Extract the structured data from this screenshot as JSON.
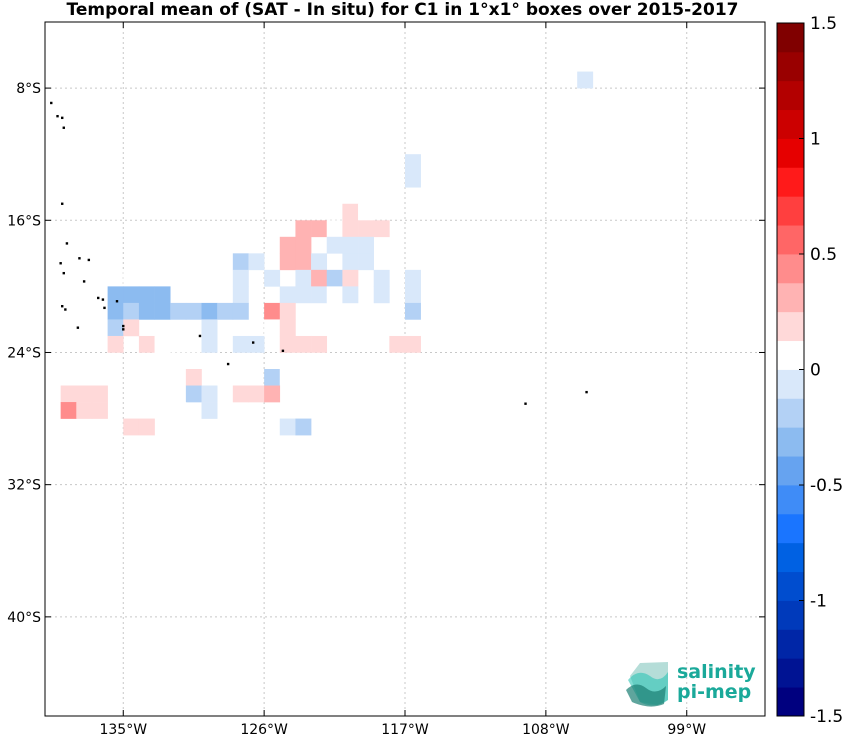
{
  "chart_data": {
    "type": "heatmap",
    "title": "Temporal mean of (SAT - In situ) for C1 in 1°x1° boxes over 2015-2017",
    "xlim": [
      -140,
      -94
    ],
    "ylim": [
      -46,
      -4
    ],
    "x_ticks": [
      {
        "value": -135,
        "label": "135°W"
      },
      {
        "value": -126,
        "label": "126°W"
      },
      {
        "value": -117,
        "label": "117°W"
      },
      {
        "value": -108,
        "label": "108°W"
      },
      {
        "value": -99,
        "label": "99°W"
      }
    ],
    "y_ticks": [
      {
        "value": -8,
        "label": "8°S"
      },
      {
        "value": -16,
        "label": "16°S"
      },
      {
        "value": -24,
        "label": "24°S"
      },
      {
        "value": -32,
        "label": "32°S"
      },
      {
        "value": -40,
        "label": "40°S"
      }
    ],
    "grid": true,
    "colorbar": {
      "min": -1.5,
      "max": 1.5,
      "levels": 20,
      "placement": "right",
      "ticks": [
        {
          "value": 1.5,
          "label": "1.5"
        },
        {
          "value": 1,
          "label": "1"
        },
        {
          "value": 0.5,
          "label": "0.5"
        },
        {
          "value": 0,
          "label": "0"
        },
        {
          "value": -0.5,
          "label": "-0.5"
        },
        {
          "value": -1,
          "label": "-1"
        },
        {
          "value": -1.5,
          "label": "-1.5"
        }
      ],
      "colors": [
        "#00007f",
        "#001393",
        "#0026a7",
        "#003abb",
        "#004dcf",
        "#0061e3",
        "#1a75ff",
        "#3f8cf7",
        "#66a3f0",
        "#8cbbf0",
        "#b3d1f5",
        "#d9e8fa",
        "#ffffff",
        "#ffd9d9",
        "#ffb3b3",
        "#ff8c8c",
        "#ff6666",
        "#ff3f3f",
        "#ff1a1a",
        "#e60000",
        "#cc0000",
        "#b30000",
        "#990000",
        "#800000"
      ]
    },
    "cells": [
      {
        "lon": -106,
        "lat": -7,
        "v": -0.1
      },
      {
        "lon": -117,
        "lat": -12,
        "v": -0.1
      },
      {
        "lon": -117,
        "lat": -13,
        "v": -0.1
      },
      {
        "lon": -121,
        "lat": -15,
        "v": 0.2
      },
      {
        "lon": -120,
        "lat": -15,
        "v": 0.1
      },
      {
        "lon": -124,
        "lat": -16,
        "v": 0.25
      },
      {
        "lon": -123,
        "lat": -16,
        "v": 0.25
      },
      {
        "lon": -122,
        "lat": -16,
        "v": 0.1
      },
      {
        "lon": -121,
        "lat": -16,
        "v": 0.2
      },
      {
        "lon": -120,
        "lat": -16,
        "v": 0.2
      },
      {
        "lon": -119,
        "lat": -16,
        "v": 0.2
      },
      {
        "lon": -125,
        "lat": -17,
        "v": 0.25
      },
      {
        "lon": -124,
        "lat": -17,
        "v": 0.3
      },
      {
        "lon": -122,
        "lat": -17,
        "v": -0.1
      },
      {
        "lon": -121,
        "lat": -17,
        "v": -0.1
      },
      {
        "lon": -120,
        "lat": -17,
        "v": -0.1
      },
      {
        "lon": -128,
        "lat": -18,
        "v": -0.15
      },
      {
        "lon": -127,
        "lat": -18,
        "v": -0.1
      },
      {
        "lon": -125,
        "lat": -18,
        "v": 0.25
      },
      {
        "lon": -124,
        "lat": -18,
        "v": 0.3
      },
      {
        "lon": -123,
        "lat": -18,
        "v": -0.1
      },
      {
        "lon": -121,
        "lat": -18,
        "v": -0.1
      },
      {
        "lon": -120,
        "lat": -18,
        "v": -0.1
      },
      {
        "lon": -135,
        "lat": -19,
        "v": 0.1
      },
      {
        "lon": -130,
        "lat": -19,
        "v": 0.1
      },
      {
        "lon": -128,
        "lat": -19,
        "v": -0.1
      },
      {
        "lon": -126,
        "lat": -19,
        "v": -0.1
      },
      {
        "lon": -124,
        "lat": -19,
        "v": -0.1
      },
      {
        "lon": -123,
        "lat": -19,
        "v": 0.3
      },
      {
        "lon": -122,
        "lat": -19,
        "v": -0.15
      },
      {
        "lon": -121,
        "lat": -19,
        "v": 0.15
      },
      {
        "lon": -119,
        "lat": -19,
        "v": -0.1
      },
      {
        "lon": -117,
        "lat": -19,
        "v": -0.1
      },
      {
        "lon": -136,
        "lat": -20,
        "v": -0.3
      },
      {
        "lon": -135,
        "lat": -20,
        "v": -0.3
      },
      {
        "lon": -134,
        "lat": -20,
        "v": -0.3
      },
      {
        "lon": -133,
        "lat": -20,
        "v": -0.3
      },
      {
        "lon": -128,
        "lat": -20,
        "v": -0.1
      },
      {
        "lon": -125,
        "lat": -20,
        "v": -0.1
      },
      {
        "lon": -124,
        "lat": -20,
        "v": -0.1
      },
      {
        "lon": -123,
        "lat": -20,
        "v": -0.1
      },
      {
        "lon": -122,
        "lat": -20,
        "v": 0.1
      },
      {
        "lon": -121,
        "lat": -20,
        "v": -0.1
      },
      {
        "lon": -119,
        "lat": -20,
        "v": -0.1
      },
      {
        "lon": -117,
        "lat": -20,
        "v": -0.1
      },
      {
        "lon": -136,
        "lat": -21,
        "v": -0.3
      },
      {
        "lon": -135,
        "lat": -21,
        "v": -0.2
      },
      {
        "lon": -134,
        "lat": -21,
        "v": -0.3
      },
      {
        "lon": -133,
        "lat": -21,
        "v": -0.3
      },
      {
        "lon": -132,
        "lat": -21,
        "v": -0.15
      },
      {
        "lon": -131,
        "lat": -21,
        "v": -0.2
      },
      {
        "lon": -130,
        "lat": -21,
        "v": -0.3
      },
      {
        "lon": -129,
        "lat": -21,
        "v": -0.15
      },
      {
        "lon": -128,
        "lat": -21,
        "v": -0.15
      },
      {
        "lon": -126,
        "lat": -21,
        "v": 0.4
      },
      {
        "lon": -125,
        "lat": -21,
        "v": 0.15
      },
      {
        "lon": -117,
        "lat": -21,
        "v": -0.2
      },
      {
        "lon": -136,
        "lat": -22,
        "v": -0.15
      },
      {
        "lon": -135,
        "lat": -22,
        "v": 0.15
      },
      {
        "lon": -130,
        "lat": -22,
        "v": -0.1
      },
      {
        "lon": -126,
        "lat": -22,
        "v": 0.1
      },
      {
        "lon": -125,
        "lat": -22,
        "v": 0.2
      },
      {
        "lon": -136,
        "lat": -23,
        "v": 0.2
      },
      {
        "lon": -134,
        "lat": -23,
        "v": 0.2
      },
      {
        "lon": -133,
        "lat": -23,
        "v": 0.1
      },
      {
        "lon": -130,
        "lat": -23,
        "v": -0.1
      },
      {
        "lon": -128,
        "lat": -23,
        "v": -0.1
      },
      {
        "lon": -127,
        "lat": -23,
        "v": -0.1
      },
      {
        "lon": -125,
        "lat": -23,
        "v": 0.15
      },
      {
        "lon": -124,
        "lat": -23,
        "v": 0.15
      },
      {
        "lon": -123,
        "lat": -23,
        "v": 0.15
      },
      {
        "lon": -118,
        "lat": -23,
        "v": 0.15
      },
      {
        "lon": -117,
        "lat": -23,
        "v": 0.15
      },
      {
        "lon": -133,
        "lat": -24,
        "v": 0.1
      },
      {
        "lon": -132,
        "lat": -24,
        "v": 0.1
      },
      {
        "lon": -131,
        "lat": -24,
        "v": 0.1
      },
      {
        "lon": -131,
        "lat": -25,
        "v": 0.15
      },
      {
        "lon": -126,
        "lat": -25,
        "v": -0.15
      },
      {
        "lon": -125,
        "lat": -25,
        "v": 0.1
      },
      {
        "lon": -139,
        "lat": -26,
        "v": 0.2
      },
      {
        "lon": -138,
        "lat": -26,
        "v": 0.2
      },
      {
        "lon": -137,
        "lat": -26,
        "v": 0.2
      },
      {
        "lon": -131,
        "lat": -26,
        "v": -0.2
      },
      {
        "lon": -130,
        "lat": -26,
        "v": -0.1
      },
      {
        "lon": -128,
        "lat": -26,
        "v": 0.2
      },
      {
        "lon": -127,
        "lat": -26,
        "v": 0.2
      },
      {
        "lon": -126,
        "lat": -26,
        "v": 0.35
      },
      {
        "lon": -139,
        "lat": -27,
        "v": 0.4
      },
      {
        "lon": -138,
        "lat": -27,
        "v": 0.2
      },
      {
        "lon": -137,
        "lat": -27,
        "v": 0.2
      },
      {
        "lon": -132,
        "lat": -27,
        "v": 0.1
      },
      {
        "lon": -130,
        "lat": -27,
        "v": -0.1
      },
      {
        "lon": -123,
        "lat": -27,
        "v": 0.1
      },
      {
        "lon": -122,
        "lat": -27,
        "v": 0.1
      },
      {
        "lon": -135,
        "lat": -28,
        "v": 0.15
      },
      {
        "lon": -134,
        "lat": -28,
        "v": 0.2
      },
      {
        "lon": -125,
        "lat": -28,
        "v": -0.1
      },
      {
        "lon": -124,
        "lat": -28,
        "v": -0.2
      }
    ],
    "islands": [
      {
        "lon": -139.6,
        "lat": -8.9
      },
      {
        "lon": -139.2,
        "lat": -9.7
      },
      {
        "lon": -138.9,
        "lat": -9.8
      },
      {
        "lon": -138.8,
        "lat": -10.4
      },
      {
        "lon": -138.9,
        "lat": -15.0
      },
      {
        "lon": -138.6,
        "lat": -17.4
      },
      {
        "lon": -137.8,
        "lat": -18.3
      },
      {
        "lon": -137.2,
        "lat": -18.4
      },
      {
        "lon": -139.0,
        "lat": -18.6
      },
      {
        "lon": -138.8,
        "lat": -19.2
      },
      {
        "lon": -137.5,
        "lat": -19.7
      },
      {
        "lon": -136.6,
        "lat": -20.7
      },
      {
        "lon": -136.3,
        "lat": -20.8
      },
      {
        "lon": -135.4,
        "lat": -20.9
      },
      {
        "lon": -138.9,
        "lat": -21.2
      },
      {
        "lon": -138.7,
        "lat": -21.4
      },
      {
        "lon": -136.2,
        "lat": -21.3
      },
      {
        "lon": -135.0,
        "lat": -22.4
      },
      {
        "lon": -135.0,
        "lat": -22.6
      },
      {
        "lon": -137.9,
        "lat": -22.5
      },
      {
        "lon": -130.1,
        "lat": -23.0
      },
      {
        "lon": -128.3,
        "lat": -24.7
      },
      {
        "lon": -124.8,
        "lat": -23.9
      },
      {
        "lon": -126.7,
        "lat": -23.4
      },
      {
        "lon": -109.3,
        "lat": -27.1
      },
      {
        "lon": -105.4,
        "lat": -26.4
      }
    ]
  },
  "logo": {
    "line1": "salinity",
    "line2": "pi-mep"
  }
}
